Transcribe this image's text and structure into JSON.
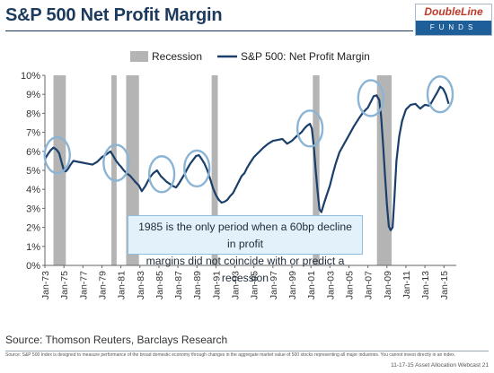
{
  "header": {
    "title": "S&P 500 Net Profit Margin",
    "logo_top": "DoubleLine",
    "logo_bottom": "FUNDS"
  },
  "annotation": {
    "line1": "1985 is the only period when  a 60bp decline in profit",
    "line2": "margins did not coincide with or predict a recession"
  },
  "footer": {
    "source": "Source: Thomson Reuters, Barclays Research",
    "disclaimer": "Source:  S&P 500 Index is designed to measure performance of the broad domestic economy through changes in the aggregate market value of 500 stocks representing all major industries. You cannot invest directly in an index.",
    "webcast": "11-17-15 Asset Allocation Webcast 21"
  },
  "colors": {
    "line": "#1b3f6b",
    "recession": "#b4b4b4",
    "circle": "#8cb4d4",
    "axis_text": "#333333"
  },
  "chart_data": {
    "type": "line",
    "title": "",
    "xlabel": "",
    "ylabel": "",
    "ylim": [
      0,
      10
    ],
    "xlim": [
      1973.0,
      2016.3
    ],
    "grid": false,
    "legend_position": "top-center",
    "yticks": [
      0,
      1,
      2,
      3,
      4,
      5,
      6,
      7,
      8,
      9,
      10
    ],
    "ytick_labels": [
      "0%",
      "1%",
      "2%",
      "3%",
      "4%",
      "5%",
      "6%",
      "7%",
      "8%",
      "9%",
      "10%"
    ],
    "xtick_values": [
      1973,
      1975,
      1977,
      1979,
      1981,
      1983,
      1985,
      1987,
      1989,
      1991,
      1993,
      1995,
      1997,
      1999,
      2001,
      2003,
      2005,
      2007,
      2009,
      2011,
      2013,
      2015
    ],
    "xtick_labels": [
      "Jan-73",
      "Jan-75",
      "Jan-77",
      "Jan-79",
      "Jan-81",
      "Jan-83",
      "Jan-85",
      "Jan-87",
      "Jan-89",
      "Jan-91",
      "Jan-93",
      "Jan-95",
      "Jan-97",
      "Jan-99",
      "Jan-01",
      "Jan-03",
      "Jan-05",
      "Jan-07",
      "Jan-09",
      "Jan-11",
      "Jan-13",
      "Jan-15"
    ],
    "legend": [
      {
        "name": "Recession",
        "kind": "bar"
      },
      {
        "name": "S&P 500: Net Profit Margin",
        "kind": "line"
      }
    ],
    "recessions": [
      [
        1973.9,
        1975.2
      ],
      [
        1980.0,
        1980.55
      ],
      [
        1981.55,
        1982.9
      ],
      [
        1990.55,
        1991.2
      ],
      [
        2001.2,
        2001.9
      ],
      [
        2007.95,
        2009.5
      ]
    ],
    "highlight_circles": [
      {
        "x": 1974.3,
        "y": 5.8
      },
      {
        "x": 1980.5,
        "y": 5.4
      },
      {
        "x": 1985.3,
        "y": 4.8
      },
      {
        "x": 1989.0,
        "y": 5.1
      },
      {
        "x": 2000.9,
        "y": 7.2
      },
      {
        "x": 2007.3,
        "y": 8.8
      },
      {
        "x": 2014.6,
        "y": 9.0
      }
    ],
    "series": [
      {
        "name": "S&P 500: Net Profit Margin",
        "x": [
          1973.0,
          1973.3,
          1973.6,
          1973.9,
          1974.2,
          1974.5,
          1974.8,
          1975.0,
          1975.2,
          1975.4,
          1975.7,
          1976.0,
          1976.5,
          1977.0,
          1977.5,
          1978.0,
          1978.5,
          1979.0,
          1979.5,
          1979.9,
          1980.2,
          1980.5,
          1980.8,
          1981.0,
          1981.3,
          1981.6,
          1982.0,
          1982.5,
          1982.9,
          1983.2,
          1983.6,
          1984.0,
          1984.4,
          1984.8,
          1985.2,
          1985.5,
          1985.8,
          1986.1,
          1986.4,
          1986.8,
          1987.1,
          1987.4,
          1987.7,
          1988.0,
          1988.3,
          1988.6,
          1988.9,
          1989.2,
          1989.5,
          1989.8,
          1990.1,
          1990.4,
          1990.7,
          1991.0,
          1991.3,
          1991.6,
          1991.9,
          1992.2,
          1992.5,
          1992.8,
          1993.1,
          1993.4,
          1993.7,
          1994.0,
          1994.3,
          1994.6,
          1995.0,
          1995.5,
          1996.0,
          1996.5,
          1997.0,
          1997.5,
          1998.0,
          1998.5,
          1999.0,
          1999.5,
          2000.0,
          2000.3,
          2000.6,
          2000.9,
          2001.1,
          2001.3,
          2001.5,
          2001.7,
          2001.9,
          2002.1,
          2002.4,
          2002.7,
          2003.0,
          2003.3,
          2003.6,
          2004.0,
          2004.5,
          2005.0,
          2005.5,
          2006.0,
          2006.5,
          2007.0,
          2007.3,
          2007.6,
          2007.9,
          2008.2,
          2008.4,
          2008.6,
          2008.8,
          2009.0,
          2009.2,
          2009.4,
          2009.6,
          2009.8,
          2010.0,
          2010.3,
          2010.6,
          2011.0,
          2011.5,
          2012.0,
          2012.5,
          2013.0,
          2013.5,
          2014.0,
          2014.3,
          2014.6,
          2014.9,
          2015.2,
          2015.5
        ],
        "y": [
          5.6,
          5.85,
          6.05,
          6.2,
          6.1,
          5.9,
          5.35,
          5.0,
          4.95,
          5.05,
          5.3,
          5.5,
          5.45,
          5.4,
          5.35,
          5.3,
          5.45,
          5.7,
          5.85,
          6.0,
          5.75,
          5.5,
          5.3,
          5.2,
          5.0,
          4.85,
          4.7,
          4.4,
          4.2,
          3.9,
          4.2,
          4.6,
          4.85,
          5.0,
          4.7,
          4.55,
          4.4,
          4.3,
          4.2,
          4.1,
          4.3,
          4.55,
          4.8,
          5.1,
          5.35,
          5.55,
          5.75,
          5.8,
          5.6,
          5.35,
          5.0,
          4.55,
          4.05,
          3.7,
          3.45,
          3.3,
          3.35,
          3.45,
          3.65,
          3.8,
          4.1,
          4.4,
          4.7,
          4.85,
          5.15,
          5.4,
          5.7,
          5.95,
          6.2,
          6.4,
          6.55,
          6.6,
          6.65,
          6.4,
          6.55,
          6.8,
          7.0,
          7.2,
          7.35,
          7.45,
          7.2,
          6.3,
          5.0,
          3.9,
          2.95,
          2.8,
          3.3,
          3.75,
          4.2,
          4.8,
          5.35,
          5.95,
          6.4,
          6.85,
          7.3,
          7.7,
          8.05,
          8.3,
          8.6,
          8.9,
          8.95,
          8.7,
          7.8,
          6.3,
          4.7,
          3.2,
          2.05,
          1.85,
          2.0,
          3.6,
          5.5,
          6.8,
          7.6,
          8.2,
          8.45,
          8.5,
          8.25,
          8.45,
          8.4,
          8.85,
          9.1,
          9.4,
          9.3,
          9.0,
          8.5
        ]
      }
    ]
  }
}
